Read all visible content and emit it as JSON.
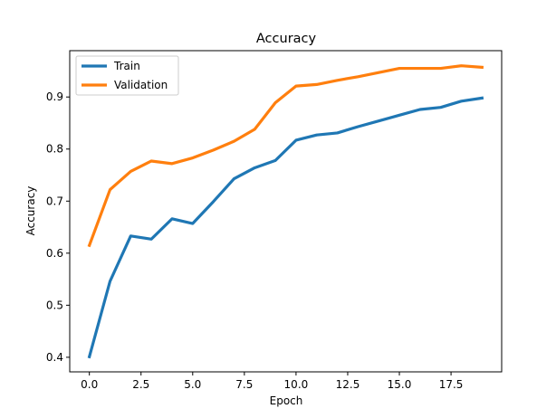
{
  "chart_data": {
    "type": "line",
    "title": "Accuracy",
    "xlabel": "Epoch",
    "ylabel": "Accuracy",
    "xlim": [
      -0.95,
      19.95
    ],
    "ylim": [
      0.372,
      0.989
    ],
    "xticks": [
      0,
      2.5,
      5,
      7.5,
      10,
      12.5,
      15,
      17.5
    ],
    "xtick_labels": [
      "0.0",
      "2.5",
      "5.0",
      "7.5",
      "10.0",
      "12.5",
      "15.0",
      "17.5"
    ],
    "yticks": [
      0.4,
      0.5,
      0.6,
      0.7,
      0.8,
      0.9
    ],
    "ytick_labels": [
      "0.4",
      "0.5",
      "0.6",
      "0.7",
      "0.8",
      "0.9"
    ],
    "grid": false,
    "legend_position": "upper-left",
    "x": [
      0,
      1,
      2,
      3,
      4,
      5,
      6,
      7,
      8,
      9,
      10,
      11,
      12,
      13,
      14,
      15,
      16,
      17,
      18,
      19
    ],
    "series": [
      {
        "name": "Train",
        "color": "#1f77b4",
        "values": [
          0.401,
          0.546,
          0.633,
          0.627,
          0.666,
          0.657,
          0.699,
          0.743,
          0.764,
          0.778,
          0.817,
          0.827,
          0.831,
          0.843,
          0.854,
          0.865,
          0.876,
          0.88,
          0.892,
          0.898
        ]
      },
      {
        "name": "Validation",
        "color": "#ff7f0e",
        "values": [
          0.615,
          0.722,
          0.757,
          0.777,
          0.772,
          0.783,
          0.798,
          0.815,
          0.838,
          0.889,
          0.921,
          0.924,
          0.932,
          0.939,
          0.947,
          0.955,
          0.955,
          0.955,
          0.96,
          0.957
        ]
      }
    ]
  }
}
